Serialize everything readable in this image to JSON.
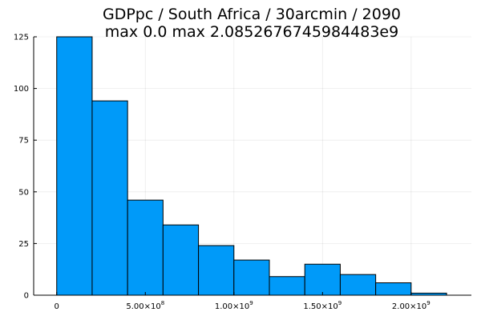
{
  "chart_data": {
    "type": "bar",
    "title_line1": "GDPpc / South Africa / 30arcmin / 2090",
    "title_line2": "max 0.0  max 2.0852676745984483e9",
    "bin_edges": [
      0,
      200000000,
      400000000,
      600000000,
      800000000,
      1000000000,
      1200000000,
      1400000000,
      1600000000,
      1800000000,
      2000000000,
      2200000000
    ],
    "values": [
      125,
      94,
      46,
      34,
      24,
      17,
      9,
      15,
      10,
      6,
      1
    ],
    "bar_color": "#009af9",
    "xlim": [
      -130000000,
      2340000000
    ],
    "ylim": [
      0,
      125
    ],
    "y_ticks": [
      {
        "value": 0,
        "label": "0"
      },
      {
        "value": 25,
        "label": "25"
      },
      {
        "value": 50,
        "label": "50"
      },
      {
        "value": 75,
        "label": "75"
      },
      {
        "value": 100,
        "label": "100"
      },
      {
        "value": 125,
        "label": "125"
      }
    ],
    "x_ticks": [
      {
        "value": 0,
        "base": "0",
        "exp": ""
      },
      {
        "value": 500000000,
        "base": "5.00×10",
        "exp": "8"
      },
      {
        "value": 1000000000,
        "base": "1.00×10",
        "exp": "9"
      },
      {
        "value": 1500000000,
        "base": "1.50×10",
        "exp": "9"
      },
      {
        "value": 2000000000,
        "base": "2.00×10",
        "exp": "9"
      }
    ],
    "grid": true,
    "legend": "none"
  }
}
